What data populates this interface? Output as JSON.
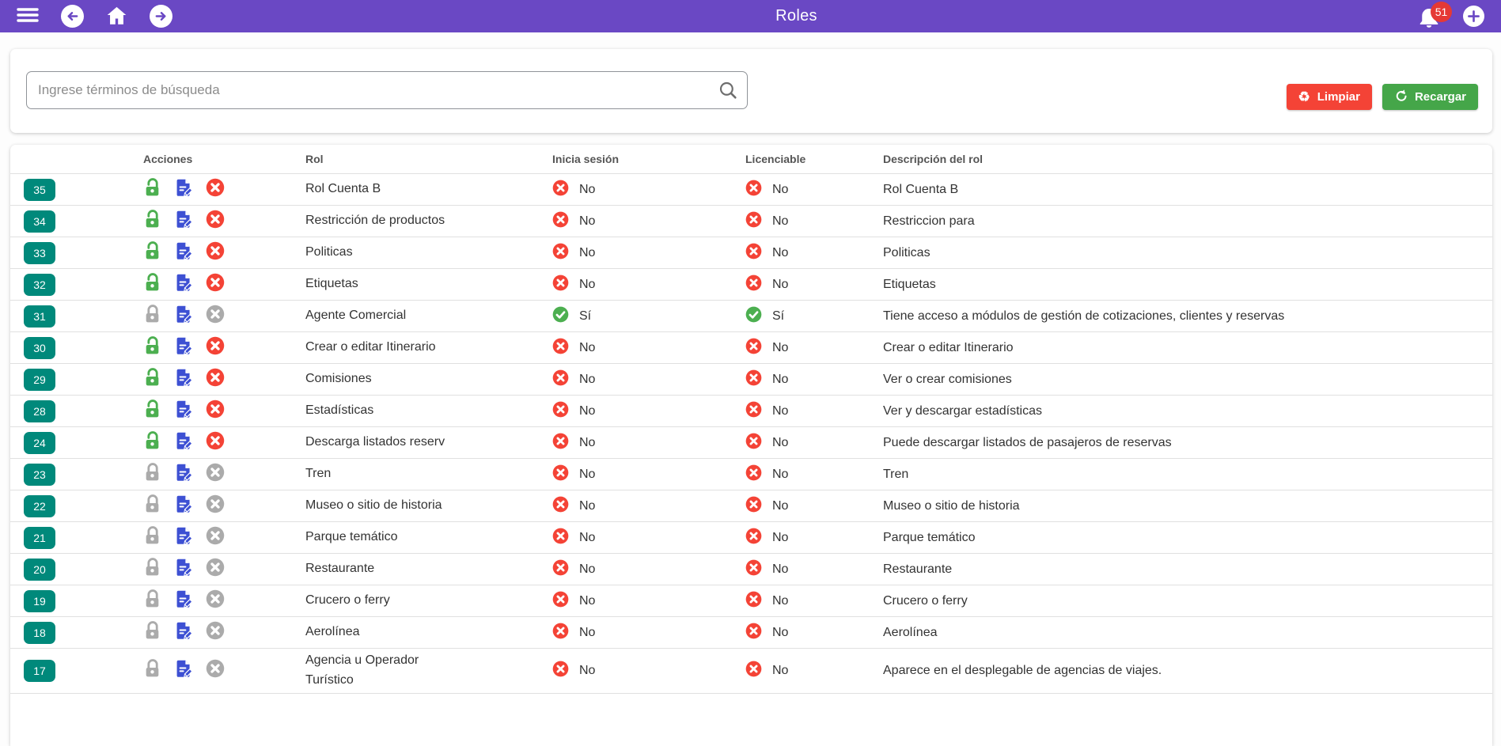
{
  "appbar": {
    "title": "Roles",
    "notification_count": "51"
  },
  "search": {
    "placeholder": "Ingrese términos de búsqueda",
    "clear_label": "Limpiar",
    "reload_label": "Recargar"
  },
  "table": {
    "columns": {
      "actions": "Acciones",
      "role": "Rol",
      "login": "Inicia sesión",
      "licensable": "Licenciable",
      "description": "Descripción del rol"
    },
    "rows": [
      {
        "id": "35",
        "active": true,
        "role": "Rol Cuenta B",
        "login": "No",
        "licensable": "No",
        "description": "Rol Cuenta B"
      },
      {
        "id": "34",
        "active": true,
        "role": "Restricción de productos",
        "login": "No",
        "licensable": "No",
        "description": "Restriccion para"
      },
      {
        "id": "33",
        "active": true,
        "role": "Politicas",
        "login": "No",
        "licensable": "No",
        "description": "Politicas"
      },
      {
        "id": "32",
        "active": true,
        "role": "Etiquetas",
        "login": "No",
        "licensable": "No",
        "description": "Etiquetas"
      },
      {
        "id": "31",
        "active": false,
        "role": "Agente Comercial",
        "login": "Sí",
        "licensable": "Sí",
        "description": "Tiene acceso a módulos de gestión de cotizaciones, clientes y reservas"
      },
      {
        "id": "30",
        "active": true,
        "role": "Crear o editar Itinerario",
        "login": "No",
        "licensable": "No",
        "description": "Crear o editar Itinerario"
      },
      {
        "id": "29",
        "active": true,
        "role": "Comisiones",
        "login": "No",
        "licensable": "No",
        "description": "Ver o crear comisiones"
      },
      {
        "id": "28",
        "active": true,
        "role": "Estadísticas",
        "login": "No",
        "licensable": "No",
        "description": "Ver y descargar estadísticas"
      },
      {
        "id": "24",
        "active": true,
        "role": "Descarga listados reserv",
        "login": "No",
        "licensable": "No",
        "description": "Puede descargar listados de pasajeros de reservas"
      },
      {
        "id": "23",
        "active": false,
        "role": "Tren",
        "login": "No",
        "licensable": "No",
        "description": "Tren"
      },
      {
        "id": "22",
        "active": false,
        "role": "Museo o sitio de historia",
        "login": "No",
        "licensable": "No",
        "description": "Museo o sitio de historia"
      },
      {
        "id": "21",
        "active": false,
        "role": "Parque temático",
        "login": "No",
        "licensable": "No",
        "description": "Parque temático"
      },
      {
        "id": "20",
        "active": false,
        "role": "Restaurante",
        "login": "No",
        "licensable": "No",
        "description": "Restaurante"
      },
      {
        "id": "19",
        "active": false,
        "role": "Crucero o ferry",
        "login": "No",
        "licensable": "No",
        "description": "Crucero o ferry"
      },
      {
        "id": "18",
        "active": false,
        "role": "Aerolínea",
        "login": "No",
        "licensable": "No",
        "description": "Aerolínea"
      },
      {
        "id": "17",
        "active": false,
        "role": "Agencia u Operador Turístico",
        "login": "No",
        "licensable": "No",
        "description": "Aparece en el desplegable de agencias de viajes."
      }
    ]
  },
  "colors": {
    "purple": "#6a48c4",
    "teal": "#00897b",
    "green": "#4caf50",
    "blue": "#3d50d3",
    "red": "#f44336",
    "gray": "#ababab"
  }
}
